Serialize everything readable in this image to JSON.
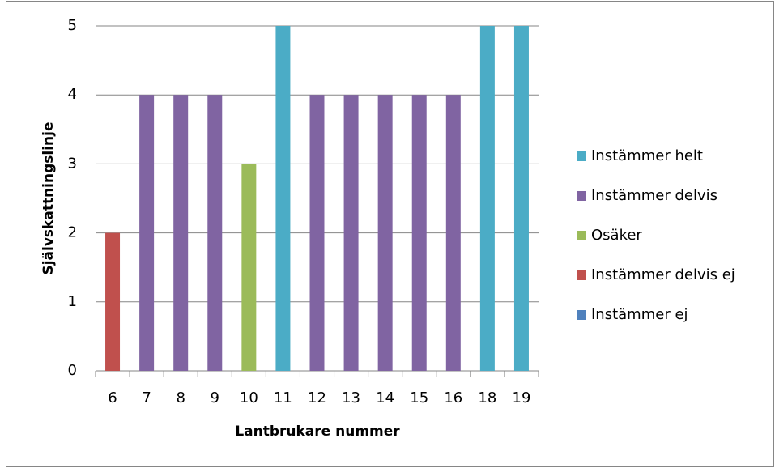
{
  "chart_data": {
    "type": "bar",
    "stacked": true,
    "x_label": "Lantbrukare nummer",
    "y_label": "Självskattningslinje",
    "categories": [
      "6",
      "7",
      "8",
      "9",
      "10",
      "11",
      "12",
      "13",
      "14",
      "15",
      "16",
      "18",
      "19"
    ],
    "series": [
      {
        "name": "Instämmer helt",
        "color": "#4bacc6",
        "values": [
          null,
          null,
          null,
          null,
          null,
          5,
          null,
          null,
          null,
          null,
          null,
          5,
          5
        ]
      },
      {
        "name": "Instämmer delvis",
        "color": "#8064a2",
        "values": [
          null,
          4,
          4,
          4,
          null,
          null,
          4,
          4,
          4,
          4,
          4,
          null,
          null
        ]
      },
      {
        "name": "Osäker",
        "color": "#9bbb59",
        "values": [
          null,
          null,
          null,
          null,
          3,
          null,
          null,
          null,
          null,
          null,
          null,
          null,
          null
        ]
      },
      {
        "name": "Instämmer delvis ej",
        "color": "#c0504d",
        "values": [
          2,
          null,
          null,
          null,
          null,
          null,
          null,
          null,
          null,
          null,
          null,
          null,
          null
        ]
      },
      {
        "name": "Instämmer ej",
        "color": "#4f81bd",
        "values": [
          null,
          null,
          null,
          null,
          null,
          null,
          null,
          null,
          null,
          null,
          null,
          null,
          null
        ]
      }
    ],
    "ylim": [
      0,
      5
    ],
    "yticks": [
      0,
      1,
      2,
      3,
      4,
      5
    ],
    "grid": true,
    "legend": "right"
  }
}
